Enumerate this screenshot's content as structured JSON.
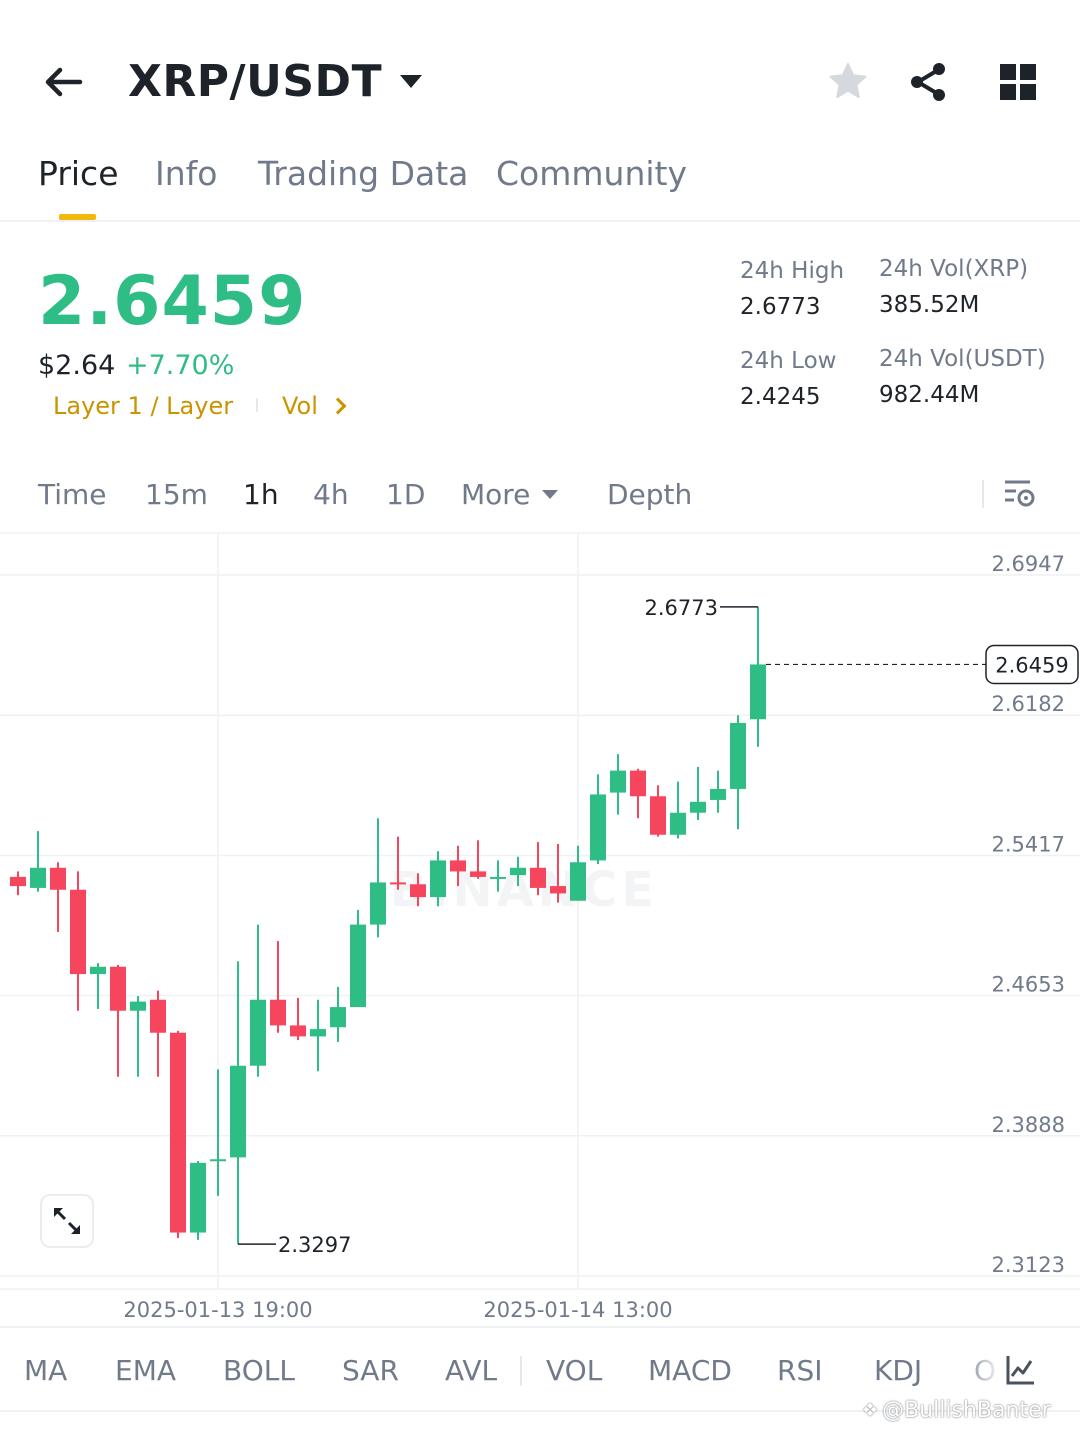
{
  "header": {
    "pair": "XRP/USDT",
    "icons": {
      "back": "arrow-left-icon",
      "dropdown": "caret-down-icon",
      "favorite": "star-icon",
      "share": "share-icon",
      "more": "grid-icon"
    }
  },
  "tabs": [
    {
      "label": "Price",
      "active": true
    },
    {
      "label": "Info",
      "active": false
    },
    {
      "label": "Trading Data",
      "active": false
    },
    {
      "label": "Community",
      "active": false
    }
  ],
  "ticker": {
    "last_price": "2.6459",
    "usd_price": "$2.64",
    "change_pct": "+7.70%",
    "tag": "Layer 1 / Layer",
    "vol_link": "Vol",
    "stats": {
      "high_label": "24h High",
      "high_value": "2.6773",
      "low_label": "24h Low",
      "low_value": "2.4245",
      "vol_base_label": "24h Vol(XRP)",
      "vol_base_value": "385.52M",
      "vol_quote_label": "24h Vol(USDT)",
      "vol_quote_value": "982.44M"
    }
  },
  "intervals": [
    {
      "label": "Time",
      "active": false
    },
    {
      "label": "15m",
      "active": false
    },
    {
      "label": "1h",
      "active": true
    },
    {
      "label": "4h",
      "active": false
    },
    {
      "label": "1D",
      "active": false
    },
    {
      "label": "More",
      "active": false
    },
    {
      "label": "Depth",
      "active": false
    }
  ],
  "colors": {
    "up": "#2ebd85",
    "down": "#f6465d",
    "accent": "#f0b90b",
    "muted": "#707a8a"
  },
  "watermark": "BINANCE",
  "chart_data": {
    "type": "candlestick",
    "y_ticks": [
      "2.6947",
      "2.6182",
      "2.5417",
      "2.4653",
      "2.3888",
      "2.3123"
    ],
    "ylim": [
      2.3123,
      2.6947
    ],
    "x_ticks": [
      "2025-01-13 19:00",
      "2025-01-14 13:00"
    ],
    "x_tick_index": [
      10,
      28
    ],
    "current_price": "2.6459",
    "max_label": "2.6773",
    "min_label": "2.3297",
    "candles": [
      {
        "o": 2.53,
        "h": 2.533,
        "l": 2.52,
        "c": 2.525
      },
      {
        "o": 2.524,
        "h": 2.555,
        "l": 2.522,
        "c": 2.535
      },
      {
        "o": 2.535,
        "h": 2.538,
        "l": 2.5,
        "c": 2.523
      },
      {
        "o": 2.523,
        "h": 2.533,
        "l": 2.457,
        "c": 2.477
      },
      {
        "o": 2.477,
        "h": 2.483,
        "l": 2.458,
        "c": 2.481
      },
      {
        "o": 2.481,
        "h": 2.482,
        "l": 2.421,
        "c": 2.457
      },
      {
        "o": 2.457,
        "h": 2.465,
        "l": 2.421,
        "c": 2.462
      },
      {
        "o": 2.463,
        "h": 2.468,
        "l": 2.421,
        "c": 2.445
      },
      {
        "o": 2.445,
        "h": 2.446,
        "l": 2.333,
        "c": 2.336
      },
      {
        "o": 2.336,
        "h": 2.375,
        "l": 2.332,
        "c": 2.374
      },
      {
        "o": 2.375,
        "h": 2.425,
        "l": 2.356,
        "c": 2.376
      },
      {
        "o": 2.377,
        "h": 2.484,
        "l": 2.3297,
        "c": 2.427
      },
      {
        "o": 2.427,
        "h": 2.504,
        "l": 2.421,
        "c": 2.463
      },
      {
        "o": 2.463,
        "h": 2.495,
        "l": 2.445,
        "c": 2.449
      },
      {
        "o": 2.449,
        "h": 2.464,
        "l": 2.441,
        "c": 2.443
      },
      {
        "o": 2.443,
        "h": 2.463,
        "l": 2.424,
        "c": 2.447
      },
      {
        "o": 2.448,
        "h": 2.47,
        "l": 2.44,
        "c": 2.459
      },
      {
        "o": 2.459,
        "h": 2.512,
        "l": 2.459,
        "c": 2.504
      },
      {
        "o": 2.504,
        "h": 2.562,
        "l": 2.497,
        "c": 2.527
      },
      {
        "o": 2.527,
        "h": 2.552,
        "l": 2.523,
        "c": 2.526
      },
      {
        "o": 2.526,
        "h": 2.532,
        "l": 2.514,
        "c": 2.519
      },
      {
        "o": 2.519,
        "h": 2.544,
        "l": 2.514,
        "c": 2.539
      },
      {
        "o": 2.539,
        "h": 2.547,
        "l": 2.525,
        "c": 2.533
      },
      {
        "o": 2.533,
        "h": 2.55,
        "l": 2.529,
        "c": 2.53
      },
      {
        "o": 2.53,
        "h": 2.539,
        "l": 2.522,
        "c": 2.53
      },
      {
        "o": 2.531,
        "h": 2.541,
        "l": 2.525,
        "c": 2.535
      },
      {
        "o": 2.535,
        "h": 2.549,
        "l": 2.52,
        "c": 2.524
      },
      {
        "o": 2.525,
        "h": 2.548,
        "l": 2.516,
        "c": 2.521
      },
      {
        "o": 2.517,
        "h": 2.547,
        "l": 2.517,
        "c": 2.538
      },
      {
        "o": 2.539,
        "h": 2.586,
        "l": 2.537,
        "c": 2.575
      },
      {
        "o": 2.576,
        "h": 2.597,
        "l": 2.564,
        "c": 2.588
      },
      {
        "o": 2.588,
        "h": 2.589,
        "l": 2.562,
        "c": 2.574
      },
      {
        "o": 2.574,
        "h": 2.58,
        "l": 2.552,
        "c": 2.553
      },
      {
        "o": 2.553,
        "h": 2.582,
        "l": 2.551,
        "c": 2.565
      },
      {
        "o": 2.565,
        "h": 2.59,
        "l": 2.561,
        "c": 2.571
      },
      {
        "o": 2.572,
        "h": 2.588,
        "l": 2.565,
        "c": 2.578
      },
      {
        "o": 2.578,
        "h": 2.6182,
        "l": 2.556,
        "c": 2.614
      },
      {
        "o": 2.616,
        "h": 2.6773,
        "l": 2.601,
        "c": 2.6459
      }
    ]
  },
  "indicators": [
    "MA",
    "EMA",
    "BOLL",
    "SAR",
    "AVL",
    "VOL",
    "MACD",
    "RSI",
    "KDJ",
    "O"
  ],
  "credit": "@BullishBanter"
}
